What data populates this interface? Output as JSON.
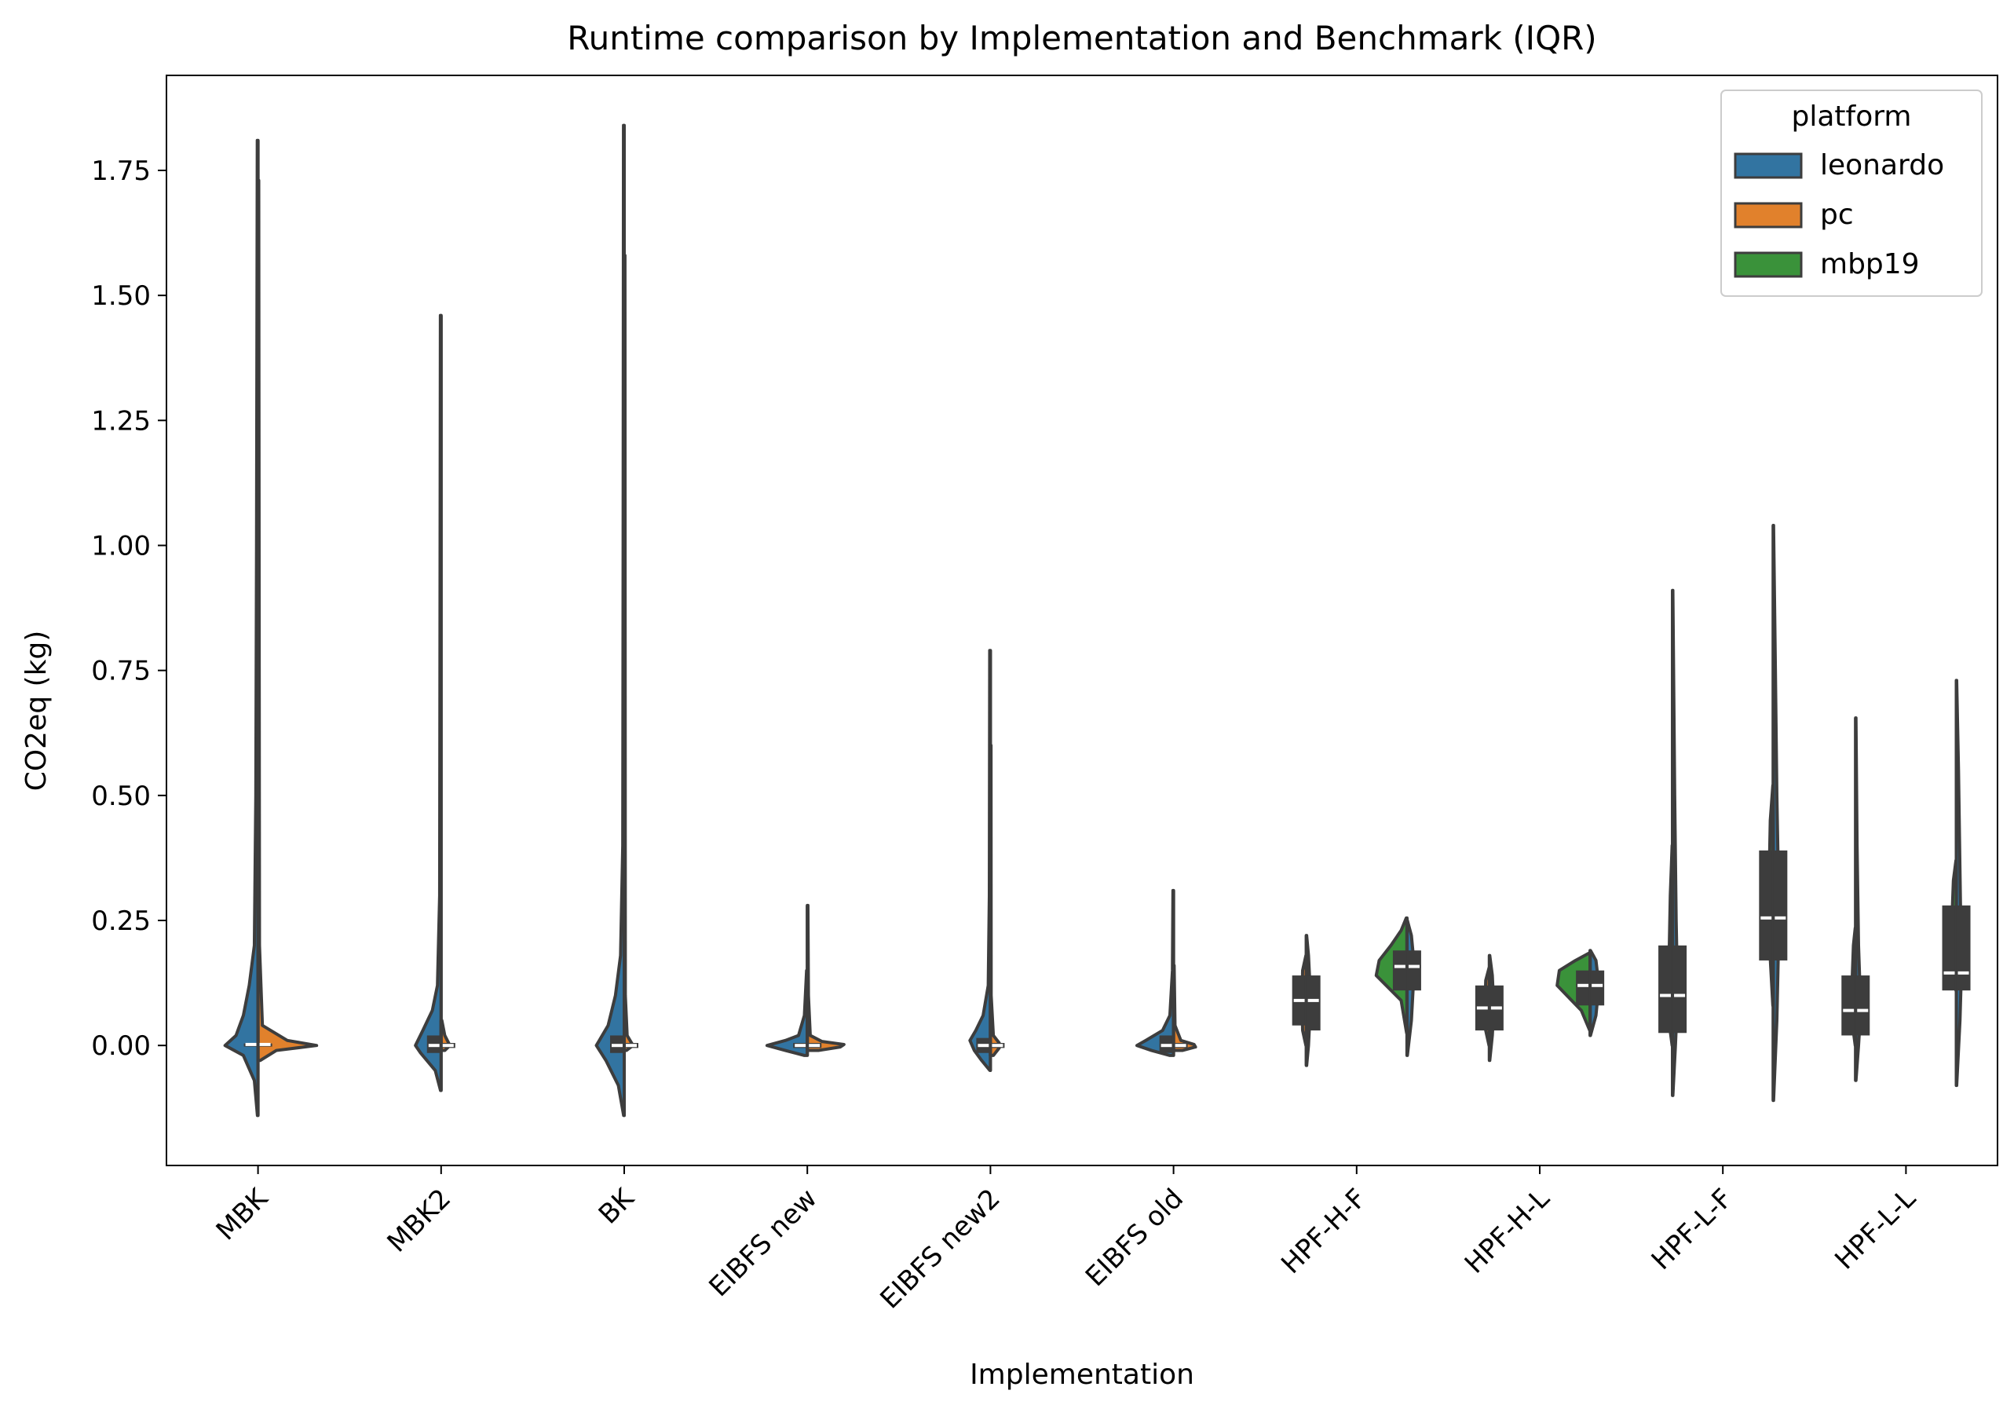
{
  "chart_data": {
    "type": "violin",
    "title": "Runtime comparison by Implementation and Benchmark (IQR)",
    "xlabel": "Implementation",
    "ylabel": "CO2eq (kg)",
    "ylim": [
      -0.24,
      1.94
    ],
    "yticks": [
      "0.00",
      "0.25",
      "0.50",
      "0.75",
      "1.00",
      "1.25",
      "1.50",
      "1.75"
    ],
    "ytick_values": [
      0,
      0.25,
      0.5,
      0.75,
      1.0,
      1.25,
      1.5,
      1.75
    ],
    "grid": false,
    "split": true,
    "inner": "box",
    "categories": [
      "MBK",
      "MBK2",
      "BK",
      "EIBFS new",
      "EIBFS new2",
      "EIBFS old",
      "HPF-H-F",
      "HPF-H-L",
      "HPF-L-F",
      "HPF-L-L"
    ],
    "legend": {
      "title": "platform",
      "position": "top-right",
      "entries": [
        {
          "label": "leonardo",
          "color": "#3274a1"
        },
        {
          "label": "pc",
          "color": "#e1812c"
        },
        {
          "label": "mbp19",
          "color": "#3a923a"
        }
      ]
    },
    "violins": [
      {
        "category": "MBK",
        "platform": "leonardo",
        "side": "left",
        "min": -0.14,
        "max": 1.81,
        "q1": 0.0,
        "median": 0.002,
        "q3": 0.004,
        "shape": [
          [
            -0.14,
            0.008
          ],
          [
            -0.07,
            0.05
          ],
          [
            -0.02,
            0.2
          ],
          [
            0.0,
            0.45
          ],
          [
            0.02,
            0.3
          ],
          [
            0.06,
            0.2
          ],
          [
            0.12,
            0.12
          ],
          [
            0.2,
            0.05
          ],
          [
            0.5,
            0.03
          ],
          [
            1.0,
            0.02
          ],
          [
            1.81,
            0.01
          ]
        ]
      },
      {
        "category": "MBK",
        "platform": "pc",
        "side": "right",
        "min": -0.03,
        "max": 1.73,
        "q1": 0.0,
        "median": 0.002,
        "q3": 0.004,
        "shape": [
          [
            -0.03,
            0.03
          ],
          [
            -0.01,
            0.25
          ],
          [
            0.0,
            0.8
          ],
          [
            0.01,
            0.4
          ],
          [
            0.04,
            0.06
          ],
          [
            0.2,
            0.02
          ],
          [
            1.73,
            0.01
          ]
        ]
      },
      {
        "category": "MBK2",
        "platform": "leonardo",
        "side": "left",
        "min": -0.09,
        "max": 1.46,
        "q1": -0.015,
        "median": 0.0,
        "q3": 0.02,
        "shape": [
          [
            -0.09,
            0.008
          ],
          [
            -0.05,
            0.08
          ],
          [
            -0.015,
            0.28
          ],
          [
            0.0,
            0.35
          ],
          [
            0.03,
            0.25
          ],
          [
            0.07,
            0.12
          ],
          [
            0.12,
            0.05
          ],
          [
            0.3,
            0.02
          ],
          [
            1.46,
            0.01
          ]
        ]
      },
      {
        "category": "MBK2",
        "platform": "pc",
        "side": "right",
        "min": -0.01,
        "max": 0.05,
        "q1": -0.005,
        "median": 0.0,
        "q3": 0.005,
        "shape": [
          [
            -0.01,
            0.05
          ],
          [
            0.0,
            0.12
          ],
          [
            0.02,
            0.05
          ],
          [
            0.05,
            0.01
          ]
        ]
      },
      {
        "category": "BK",
        "platform": "leonardo",
        "side": "left",
        "min": -0.14,
        "max": 1.84,
        "q1": -0.015,
        "median": 0.0,
        "q3": 0.02,
        "shape": [
          [
            -0.14,
            0.008
          ],
          [
            -0.08,
            0.08
          ],
          [
            -0.03,
            0.25
          ],
          [
            0.0,
            0.38
          ],
          [
            0.04,
            0.22
          ],
          [
            0.1,
            0.12
          ],
          [
            0.18,
            0.05
          ],
          [
            0.4,
            0.02
          ],
          [
            1.0,
            0.015
          ],
          [
            1.84,
            0.01
          ]
        ]
      },
      {
        "category": "BK",
        "platform": "pc",
        "side": "right",
        "min": -0.01,
        "max": 1.58,
        "q1": -0.005,
        "median": 0.0,
        "q3": 0.005,
        "shape": [
          [
            -0.01,
            0.03
          ],
          [
            0.0,
            0.12
          ],
          [
            0.02,
            0.04
          ],
          [
            0.1,
            0.015
          ],
          [
            1.58,
            0.01
          ]
        ]
      },
      {
        "category": "EIBFS new",
        "platform": "leonardo",
        "side": "left",
        "min": -0.02,
        "max": 0.15,
        "q1": -0.005,
        "median": 0.0,
        "q3": 0.005,
        "shape": [
          [
            -0.02,
            0.04
          ],
          [
            -0.01,
            0.3
          ],
          [
            0.0,
            0.55
          ],
          [
            0.01,
            0.3
          ],
          [
            0.02,
            0.12
          ],
          [
            0.06,
            0.04
          ],
          [
            0.15,
            0.01
          ]
        ]
      },
      {
        "category": "EIBFS new",
        "platform": "pc",
        "side": "right",
        "min": -0.01,
        "max": 0.28,
        "q1": -0.005,
        "median": 0.0,
        "q3": 0.005,
        "shape": [
          [
            -0.01,
            0.15
          ],
          [
            -0.003,
            0.45
          ],
          [
            0.002,
            0.5
          ],
          [
            0.008,
            0.2
          ],
          [
            0.02,
            0.04
          ],
          [
            0.1,
            0.015
          ],
          [
            0.28,
            0.008
          ]
        ]
      },
      {
        "category": "EIBFS new2",
        "platform": "leonardo",
        "side": "left",
        "min": -0.05,
        "max": 0.79,
        "q1": -0.015,
        "median": 0.0,
        "q3": 0.015,
        "shape": [
          [
            -0.05,
            0.008
          ],
          [
            -0.03,
            0.12
          ],
          [
            -0.01,
            0.22
          ],
          [
            0.01,
            0.28
          ],
          [
            0.03,
            0.2
          ],
          [
            0.06,
            0.1
          ],
          [
            0.12,
            0.03
          ],
          [
            0.3,
            0.015
          ],
          [
            0.79,
            0.01
          ]
        ]
      },
      {
        "category": "EIBFS new2",
        "platform": "pc",
        "side": "right",
        "min": -0.02,
        "max": 0.6,
        "q1": -0.005,
        "median": 0.0,
        "q3": 0.005,
        "shape": [
          [
            -0.02,
            0.04
          ],
          [
            -0.005,
            0.12
          ],
          [
            0.005,
            0.12
          ],
          [
            0.02,
            0.04
          ],
          [
            0.1,
            0.01
          ],
          [
            0.6,
            0.008
          ]
        ]
      },
      {
        "category": "EIBFS old",
        "platform": "leonardo",
        "side": "left",
        "min": -0.02,
        "max": 0.31,
        "q1": -0.015,
        "median": 0.0,
        "q3": 0.02,
        "shape": [
          [
            -0.02,
            0.05
          ],
          [
            -0.01,
            0.3
          ],
          [
            0.0,
            0.5
          ],
          [
            0.01,
            0.38
          ],
          [
            0.03,
            0.15
          ],
          [
            0.06,
            0.05
          ],
          [
            0.15,
            0.015
          ],
          [
            0.31,
            0.008
          ]
        ]
      },
      {
        "category": "EIBFS old",
        "platform": "pc",
        "side": "right",
        "min": -0.01,
        "max": 0.16,
        "q1": -0.005,
        "median": 0.0,
        "q3": 0.005,
        "shape": [
          [
            -0.01,
            0.12
          ],
          [
            -0.003,
            0.3
          ],
          [
            0.002,
            0.28
          ],
          [
            0.01,
            0.1
          ],
          [
            0.04,
            0.02
          ],
          [
            0.16,
            0.008
          ]
        ]
      },
      {
        "category": "HPF-H-F",
        "platform": "pc",
        "side": "left",
        "min": 0.0,
        "max": 0.18,
        "q1": 0.04,
        "median": 0.09,
        "q3": 0.14,
        "shape": [
          [
            0.0,
            0.005
          ],
          [
            0.03,
            0.05
          ],
          [
            0.09,
            0.06
          ],
          [
            0.15,
            0.05
          ],
          [
            0.18,
            0.005
          ]
        ]
      },
      {
        "category": "HPF-H-F",
        "platform": "leonardo",
        "side": "right",
        "min": -0.04,
        "max": 0.22,
        "q1": 0.03,
        "median": 0.09,
        "q3": 0.14,
        "shape": [
          [
            -0.04,
            0.005
          ],
          [
            0.0,
            0.03
          ],
          [
            0.09,
            0.06
          ],
          [
            0.18,
            0.03
          ],
          [
            0.22,
            0.005
          ]
        ]
      },
      {
        "category": "HPF-H-F",
        "platform": "mbp19",
        "side": "left",
        "slot": "right",
        "min": 0.025,
        "max": 0.255,
        "q1": 0.11,
        "median": 0.158,
        "q3": 0.19,
        "shape": [
          [
            0.025,
            0.005
          ],
          [
            0.09,
            0.08
          ],
          [
            0.14,
            0.42
          ],
          [
            0.17,
            0.38
          ],
          [
            0.2,
            0.22
          ],
          [
            0.23,
            0.08
          ],
          [
            0.255,
            0.01
          ]
        ]
      },
      {
        "category": "HPF-H-F",
        "platform": "leonardo",
        "side": "right",
        "slot": "right",
        "min": -0.02,
        "max": 0.25,
        "q1": 0.11,
        "median": 0.158,
        "q3": 0.19,
        "shape": [
          [
            -0.02,
            0.005
          ],
          [
            0.05,
            0.06
          ],
          [
            0.158,
            0.1
          ],
          [
            0.22,
            0.06
          ],
          [
            0.25,
            0.005
          ]
        ]
      },
      {
        "category": "HPF-H-L",
        "platform": "pc",
        "side": "left",
        "min": 0.0,
        "max": 0.155,
        "q1": 0.03,
        "median": 0.075,
        "q3": 0.12,
        "shape": [
          [
            0.0,
            0.005
          ],
          [
            0.03,
            0.05
          ],
          [
            0.075,
            0.06
          ],
          [
            0.13,
            0.05
          ],
          [
            0.155,
            0.005
          ]
        ]
      },
      {
        "category": "HPF-H-L",
        "platform": "leonardo",
        "side": "right",
        "min": -0.03,
        "max": 0.18,
        "q1": 0.03,
        "median": 0.075,
        "q3": 0.12,
        "shape": [
          [
            -0.03,
            0.005
          ],
          [
            0.02,
            0.04
          ],
          [
            0.075,
            0.06
          ],
          [
            0.14,
            0.04
          ],
          [
            0.18,
            0.005
          ]
        ]
      },
      {
        "category": "HPF-H-L",
        "platform": "mbp19",
        "side": "left",
        "slot": "right",
        "min": 0.03,
        "max": 0.185,
        "q1": 0.08,
        "median": 0.12,
        "q3": 0.15,
        "shape": [
          [
            0.03,
            0.005
          ],
          [
            0.07,
            0.12
          ],
          [
            0.12,
            0.45
          ],
          [
            0.15,
            0.42
          ],
          [
            0.17,
            0.2
          ],
          [
            0.185,
            0.01
          ]
        ]
      },
      {
        "category": "HPF-H-L",
        "platform": "leonardo",
        "side": "right",
        "slot": "right",
        "min": 0.02,
        "max": 0.19,
        "q1": 0.08,
        "median": 0.12,
        "q3": 0.15,
        "shape": [
          [
            0.02,
            0.005
          ],
          [
            0.06,
            0.08
          ],
          [
            0.12,
            0.12
          ],
          [
            0.17,
            0.08
          ],
          [
            0.19,
            0.005
          ]
        ]
      },
      {
        "category": "HPF-L-F",
        "platform": "pc",
        "side": "left",
        "min": 0.0,
        "max": 0.4,
        "q1": 0.025,
        "median": 0.1,
        "q3": 0.2,
        "shape": [
          [
            0.0,
            0.005
          ],
          [
            0.05,
            0.05
          ],
          [
            0.15,
            0.05
          ],
          [
            0.3,
            0.03
          ],
          [
            0.4,
            0.005
          ]
        ]
      },
      {
        "category": "HPF-L-F",
        "platform": "leonardo",
        "side": "right",
        "min": -0.1,
        "max": 0.91,
        "q1": 0.025,
        "median": 0.1,
        "q3": 0.2,
        "shape": [
          [
            -0.1,
            0.005
          ],
          [
            0.0,
            0.04
          ],
          [
            0.1,
            0.07
          ],
          [
            0.25,
            0.05
          ],
          [
            0.5,
            0.03
          ],
          [
            0.91,
            0.005
          ]
        ]
      },
      {
        "category": "HPF-L-F",
        "platform": "mbp19",
        "side": "left",
        "slot": "right",
        "min": 0.08,
        "max": 0.52,
        "q1": 0.17,
        "median": 0.255,
        "q3": 0.39,
        "shape": [
          [
            0.08,
            0.005
          ],
          [
            0.2,
            0.05
          ],
          [
            0.3,
            0.06
          ],
          [
            0.45,
            0.04
          ],
          [
            0.52,
            0.005
          ]
        ]
      },
      {
        "category": "HPF-L-F",
        "platform": "leonardo",
        "side": "right",
        "slot": "right",
        "min": -0.11,
        "max": 1.04,
        "q1": 0.17,
        "median": 0.255,
        "q3": 0.39,
        "shape": [
          [
            -0.11,
            0.005
          ],
          [
            0.05,
            0.05
          ],
          [
            0.255,
            0.08
          ],
          [
            0.5,
            0.05
          ],
          [
            0.75,
            0.03
          ],
          [
            1.04,
            0.005
          ]
        ]
      },
      {
        "category": "HPF-L-L",
        "platform": "pc",
        "side": "left",
        "min": 0.0,
        "max": 0.235,
        "q1": 0.02,
        "median": 0.07,
        "q3": 0.14,
        "shape": [
          [
            0.0,
            0.005
          ],
          [
            0.05,
            0.05
          ],
          [
            0.12,
            0.05
          ],
          [
            0.2,
            0.03
          ],
          [
            0.235,
            0.005
          ]
        ]
      },
      {
        "category": "HPF-L-L",
        "platform": "leonardo",
        "side": "right",
        "min": -0.07,
        "max": 0.655,
        "q1": 0.02,
        "median": 0.07,
        "q3": 0.14,
        "shape": [
          [
            -0.07,
            0.005
          ],
          [
            0.0,
            0.04
          ],
          [
            0.07,
            0.07
          ],
          [
            0.2,
            0.04
          ],
          [
            0.4,
            0.02
          ],
          [
            0.655,
            0.005
          ]
        ]
      },
      {
        "category": "HPF-L-L",
        "platform": "mbp19",
        "side": "left",
        "slot": "right",
        "min": 0.11,
        "max": 0.37,
        "q1": 0.11,
        "median": 0.145,
        "q3": 0.28,
        "shape": [
          [
            0.11,
            0.005
          ],
          [
            0.15,
            0.05
          ],
          [
            0.25,
            0.06
          ],
          [
            0.33,
            0.04
          ],
          [
            0.37,
            0.005
          ]
        ]
      },
      {
        "category": "HPF-L-L",
        "platform": "leonardo",
        "side": "right",
        "slot": "right",
        "min": -0.08,
        "max": 0.73,
        "q1": 0.11,
        "median": 0.145,
        "q3": 0.28,
        "shape": [
          [
            -0.08,
            0.005
          ],
          [
            0.05,
            0.05
          ],
          [
            0.15,
            0.07
          ],
          [
            0.35,
            0.05
          ],
          [
            0.55,
            0.03
          ],
          [
            0.73,
            0.005
          ]
        ]
      }
    ]
  }
}
